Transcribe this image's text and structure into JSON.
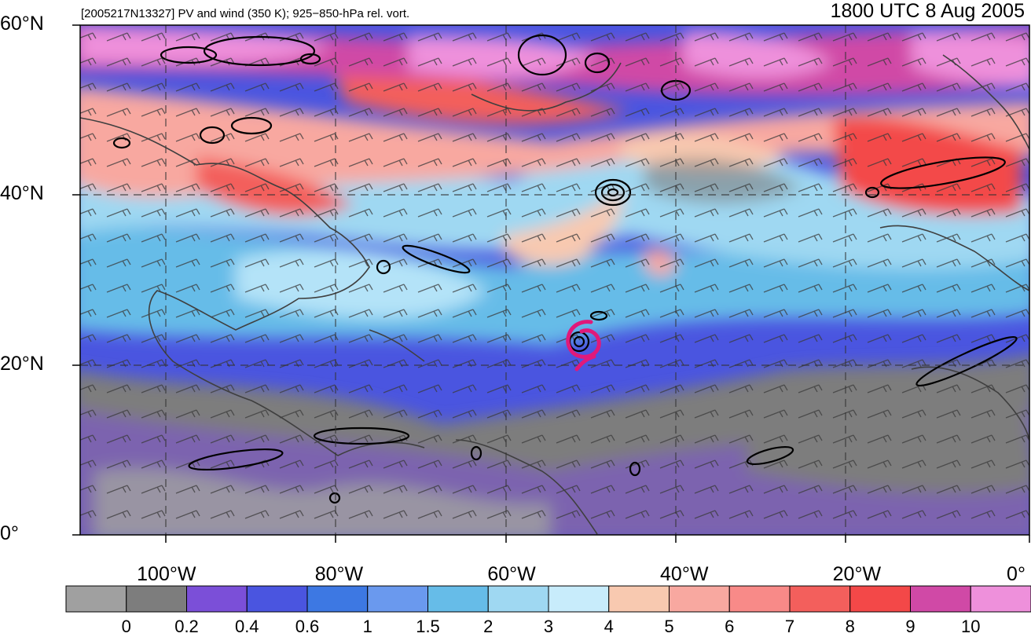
{
  "header": {
    "left_title": "[2005217N13327] PV and wind (350 K); 925−850-hPa rel. vort.",
    "right_title": "1800 UTC 8 Aug 2005"
  },
  "axes": {
    "lat_ticks": [
      {
        "value": 60,
        "label": "60°N"
      },
      {
        "value": 40,
        "label": "40°N"
      },
      {
        "value": 20,
        "label": "20°N"
      },
      {
        "value": 0,
        "label": "0°"
      }
    ],
    "lon_ticks": [
      {
        "value": -100,
        "label": "100°W"
      },
      {
        "value": -80,
        "label": "80°W"
      },
      {
        "value": -60,
        "label": "60°W"
      },
      {
        "value": -40,
        "label": "40°W"
      },
      {
        "value": -20,
        "label": "20°W"
      },
      {
        "value": 0,
        "label": "0°"
      }
    ],
    "lon_range": [
      -110,
      0
    ],
    "lat_range": [
      0,
      60
    ]
  },
  "colorbar": {
    "colors": [
      "#a0a0a0",
      "#7d7d7d",
      "#7b4fd8",
      "#4a55e0",
      "#3d78e3",
      "#6a99ee",
      "#66bce8",
      "#9fd8f2",
      "#c8ecfb",
      "#f8c9b0",
      "#f8a8a0",
      "#f88a88",
      "#f35f5c",
      "#f34848",
      "#d049a6",
      "#ee90db"
    ],
    "labels": [
      "0",
      "0.2",
      "0.4",
      "0.6",
      "1",
      "1.5",
      "2",
      "3",
      "4",
      "5",
      "6",
      "7",
      "8",
      "9",
      "10"
    ]
  },
  "storm_symbol": {
    "lon": -51.5,
    "lat": 22.5,
    "color": "#e0197a"
  }
}
